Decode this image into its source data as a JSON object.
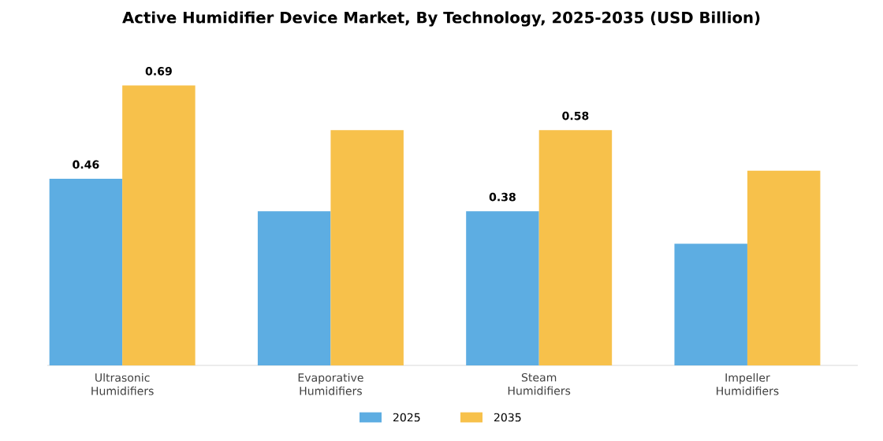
{
  "chart_data": {
    "type": "bar",
    "title": "Active Humidifier Device Market, By Technology, 2025-2035 (USD Billion)",
    "categories": [
      "Ultrasonic Humidifiers",
      "Evaporative Humidifiers",
      "Steam Humidifiers",
      "Impeller Humidifiers"
    ],
    "series": [
      {
        "name": "2025",
        "color": "#5dade2",
        "values": [
          0.46,
          0.38,
          0.38,
          0.3
        ],
        "value_labels": [
          "0.46",
          null,
          "0.38",
          null
        ]
      },
      {
        "name": "2035",
        "color": "#f7c14b",
        "values": [
          0.69,
          0.58,
          0.58,
          0.48
        ],
        "value_labels": [
          "0.69",
          null,
          "0.58",
          null
        ]
      }
    ],
    "legend": "bottom"
  }
}
